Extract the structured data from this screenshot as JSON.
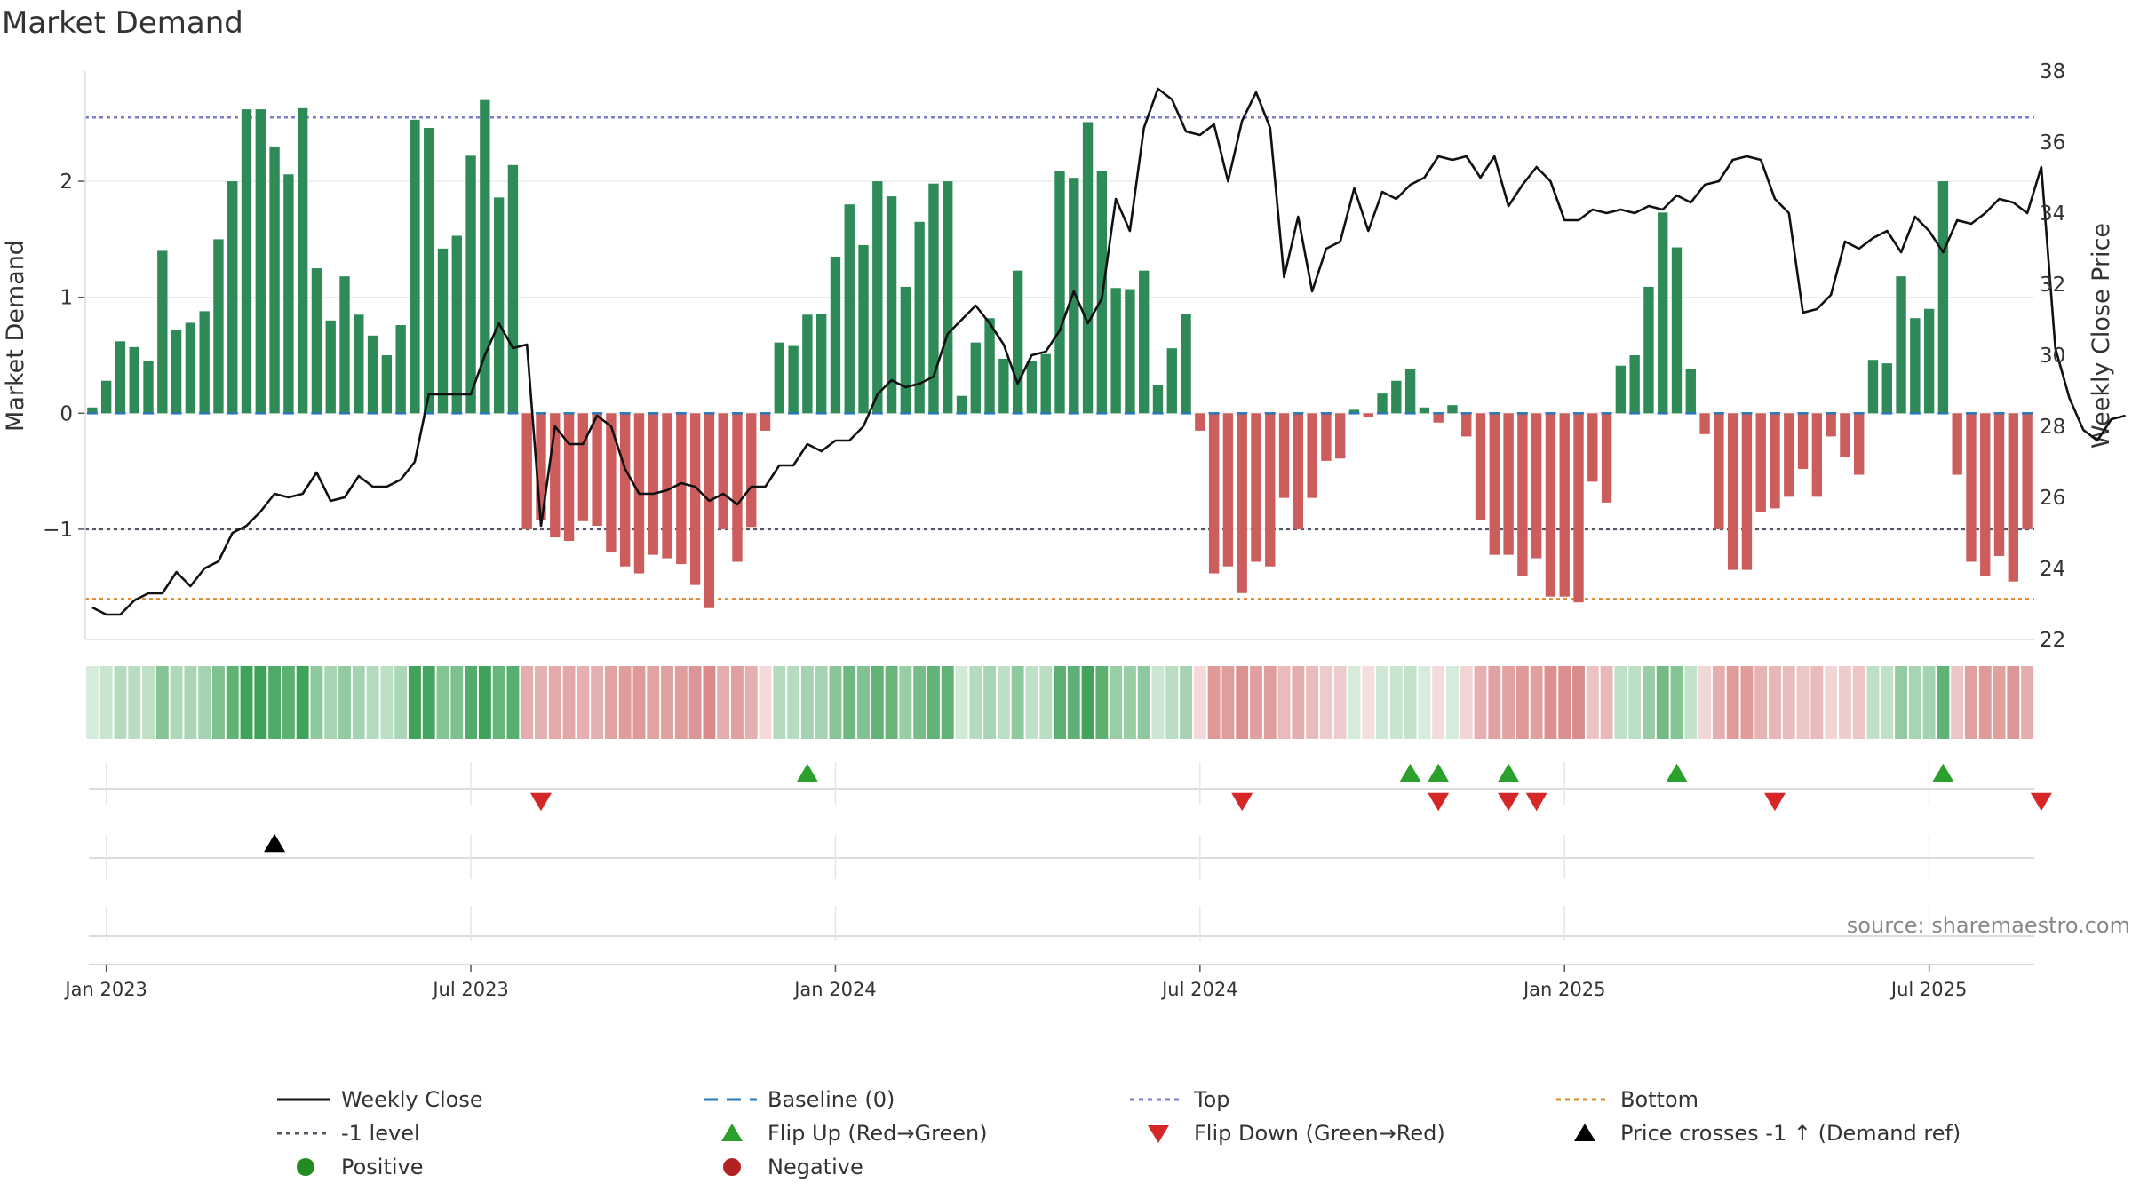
{
  "chart_data": {
    "type": "bar",
    "title": "Market Demand",
    "ylabel_left": "Market Demand",
    "ylabel_right": "Weekly Close Price",
    "y_left_range": [
      -1.95,
      2.95
    ],
    "y_right_range": [
      22,
      38
    ],
    "y_left_ticks": [
      -1,
      0,
      1,
      2
    ],
    "y_left_tick_labels": [
      "−1",
      "0",
      "1",
      "2"
    ],
    "y_right_ticks": [
      22,
      24,
      26,
      28,
      30,
      32,
      34,
      36,
      38
    ],
    "y_right_tick_labels": [
      "22",
      "24",
      "26",
      "28",
      "30",
      "32",
      "34",
      "36",
      "38"
    ],
    "x_tick_weeks": [
      1,
      27,
      53,
      79,
      105,
      131
    ],
    "x_tick_labels": [
      "Jan 2023",
      "Jul 2023",
      "Jan 2024",
      "Jul 2024",
      "Jan 2025",
      "Jul 2025"
    ],
    "reference_levels": {
      "top": 2.55,
      "bottom": -1.6,
      "minus_one": -1.0,
      "baseline": 0
    },
    "demand": [
      0.05,
      0.28,
      0.62,
      0.57,
      0.45,
      1.4,
      0.72,
      0.78,
      0.88,
      1.5,
      2.0,
      2.62,
      2.62,
      2.3,
      2.06,
      2.63,
      1.25,
      0.8,
      1.18,
      0.85,
      0.67,
      0.5,
      0.76,
      2.53,
      2.46,
      1.42,
      1.53,
      2.22,
      2.7,
      1.86,
      2.14,
      -1.0,
      -0.92,
      -1.07,
      -1.1,
      -0.93,
      -0.97,
      -1.2,
      -1.32,
      -1.38,
      -1.22,
      -1.25,
      -1.3,
      -1.48,
      -1.68,
      -1.0,
      -1.28,
      -0.98,
      -0.15,
      0.61,
      0.58,
      0.85,
      0.86,
      1.35,
      1.8,
      1.45,
      2.0,
      1.87,
      1.09,
      1.65,
      1.98,
      2.0,
      0.15,
      0.61,
      0.82,
      0.47,
      1.23,
      0.45,
      0.51,
      2.09,
      2.03,
      2.51,
      2.09,
      1.08,
      1.07,
      1.23,
      0.24,
      0.56,
      0.86,
      -0.15,
      -1.38,
      -1.32,
      -1.55,
      -1.28,
      -1.32,
      -0.73,
      -1.0,
      -0.73,
      -0.41,
      -0.39,
      0.03,
      -0.03,
      0.17,
      0.28,
      0.38,
      0.05,
      -0.08,
      0.07,
      -0.2,
      -0.92,
      -1.22,
      -1.22,
      -1.4,
      -1.25,
      -1.58,
      -1.58,
      -1.63,
      -0.59,
      -0.77,
      0.41,
      0.5,
      1.09,
      1.73,
      1.43,
      0.38,
      -0.18,
      -1.0,
      -1.35,
      -1.35,
      -0.85,
      -0.82,
      -0.72,
      -0.48,
      -0.72,
      -0.2,
      -0.38,
      -0.53,
      0.46,
      0.43,
      1.18,
      0.82,
      0.9,
      2.0,
      -0.53,
      -1.28,
      -1.4,
      -1.23,
      -1.45,
      -1.0
    ],
    "weekly_close": [
      22.9,
      22.7,
      22.7,
      23.1,
      23.3,
      23.3,
      23.9,
      23.5,
      24.0,
      24.2,
      25.0,
      25.2,
      25.6,
      26.1,
      26.0,
      26.1,
      26.7,
      25.9,
      26.0,
      26.6,
      26.3,
      26.3,
      26.5,
      27.0,
      28.9,
      28.9,
      28.9,
      28.9,
      30.0,
      30.9,
      30.2,
      30.3,
      25.2,
      28.0,
      27.5,
      27.5,
      28.3,
      28.0,
      26.8,
      26.1,
      26.1,
      26.2,
      26.4,
      26.3,
      25.9,
      26.1,
      25.8,
      26.3,
      26.3,
      26.9,
      26.9,
      27.5,
      27.3,
      27.6,
      27.6,
      28.0,
      28.9,
      29.3,
      29.1,
      29.2,
      29.4,
      30.6,
      31.0,
      31.4,
      30.9,
      30.3,
      29.2,
      30.0,
      30.1,
      30.7,
      31.8,
      30.9,
      31.6,
      34.4,
      33.5,
      36.4,
      37.5,
      37.2,
      36.3,
      36.2,
      36.5,
      34.9,
      36.6,
      37.4,
      36.4,
      32.2,
      33.9,
      31.8,
      33.0,
      33.2,
      34.7,
      33.5,
      34.6,
      34.4,
      34.8,
      35.0,
      35.6,
      35.5,
      35.6,
      35.0,
      35.6,
      34.2,
      34.8,
      35.3,
      34.9,
      33.8,
      33.8,
      34.1,
      34.0,
      34.1,
      34.0,
      34.2,
      34.1,
      34.5,
      34.3,
      34.8,
      34.9,
      35.5,
      35.6,
      35.5,
      34.4,
      34.0,
      31.2,
      31.3,
      31.7,
      33.2,
      33.0,
      33.3,
      33.5,
      32.9,
      33.9,
      33.5,
      32.9,
      33.8,
      33.7,
      34.0,
      34.4,
      34.3,
      34.0,
      35.3,
      30.2,
      28.8,
      27.9,
      27.6,
      28.2,
      28.3
    ],
    "flip_up_weeks": [
      51,
      94,
      96,
      101,
      113,
      132
    ],
    "flip_down_weeks": [
      32,
      82,
      96,
      101,
      103,
      120,
      139
    ],
    "price_cross_weeks": [
      13
    ],
    "source_note": "source: sharemaestro.com",
    "legend": [
      {
        "key": "weekly_close",
        "label": "Weekly Close",
        "marker": "line",
        "color": "#111111"
      },
      {
        "key": "baseline",
        "label": "Baseline (0)",
        "marker": "dash",
        "color": "#2878b5"
      },
      {
        "key": "top",
        "label": "Top",
        "marker": "dot-line",
        "color": "#7b7fd4"
      },
      {
        "key": "bottom",
        "label": "Bottom",
        "marker": "dot-line",
        "color": "#e0882a"
      },
      {
        "key": "minus_one",
        "label": "-1 level",
        "marker": "dot-line",
        "color": "#555566"
      },
      {
        "key": "flip_up",
        "label": "Flip Up (Red→Green)",
        "marker": "triangle-up",
        "color": "#2ca02c"
      },
      {
        "key": "flip_down",
        "label": "Flip Down (Green→Red)",
        "marker": "triangle-down",
        "color": "#d62728"
      },
      {
        "key": "price_cross",
        "label": "Price crosses -1 ↑ (Demand ref)",
        "marker": "triangle-up",
        "color": "#000000"
      },
      {
        "key": "positive",
        "label": "Positive",
        "marker": "circle",
        "color": "#228b22"
      },
      {
        "key": "negative",
        "label": "Negative",
        "marker": "circle",
        "color": "#b22222"
      }
    ],
    "colors": {
      "positive_bar": "#2e8b57",
      "negative_bar": "#cd5c5c",
      "heat_positive": "#2e9a4a",
      "heat_negative": "#c85050",
      "grid": "#ececec",
      "axis_text": "#333333"
    }
  }
}
